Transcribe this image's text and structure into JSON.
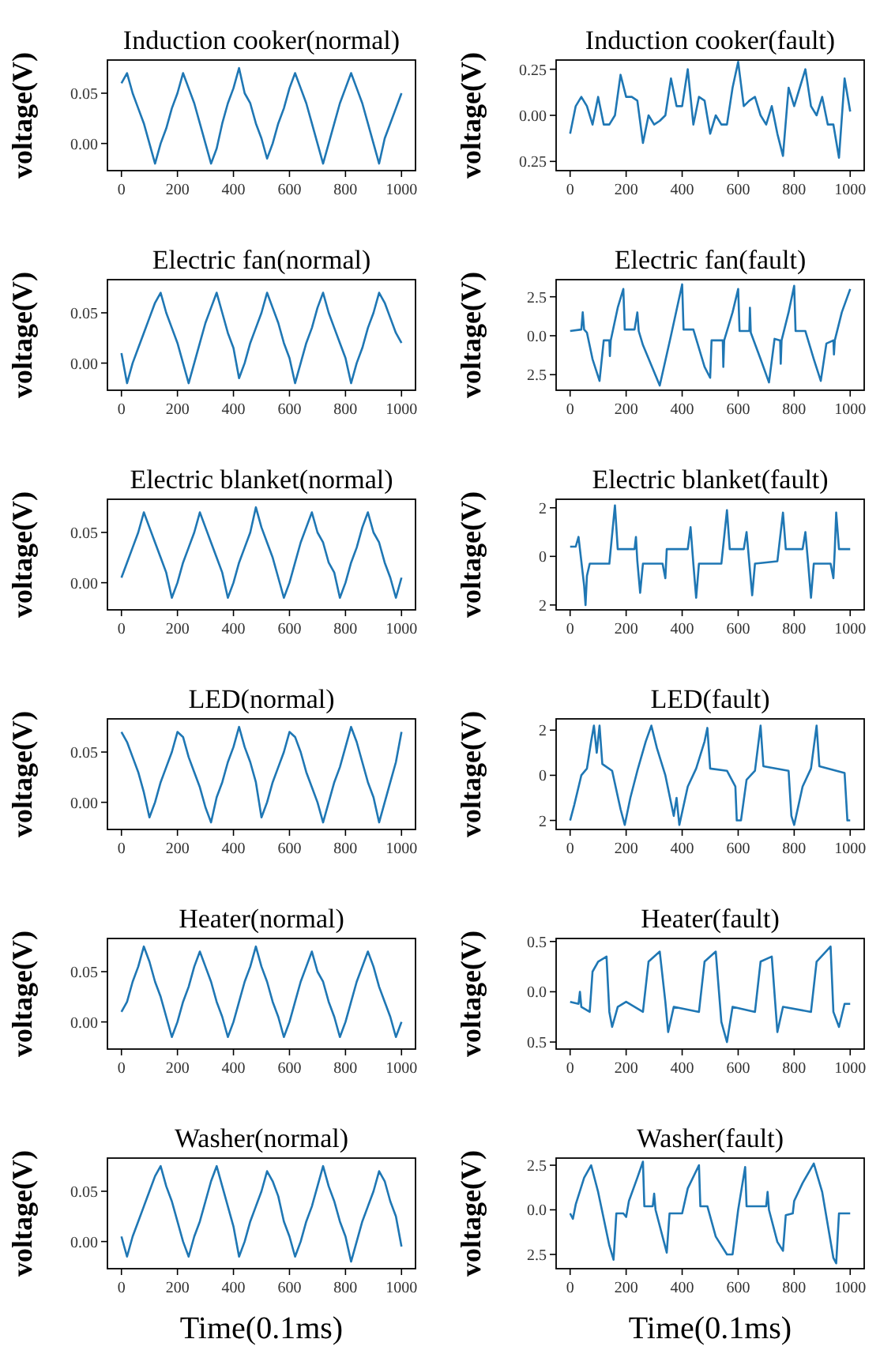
{
  "chart_data": [
    {
      "type": "line",
      "title": "Induction cooker(normal)",
      "ylabel": "voltage(V)",
      "color": "#1f77b4",
      "xlim": [
        -50,
        1050
      ],
      "ylim": [
        -0.027,
        0.083
      ],
      "xticks": [
        0,
        200,
        400,
        600,
        800,
        1000
      ],
      "yticks": [
        {
          "value": 0,
          "label": "0.00"
        },
        {
          "value": 0.05,
          "label": "0.05"
        }
      ],
      "x": [
        0,
        20,
        40,
        60,
        80,
        100,
        120,
        140,
        160,
        180,
        200,
        220,
        240,
        260,
        280,
        300,
        320,
        340,
        360,
        380,
        400,
        420,
        440,
        460,
        480,
        500,
        520,
        540,
        560,
        580,
        600,
        620,
        640,
        660,
        680,
        700,
        720,
        740,
        760,
        780,
        800,
        820,
        840,
        860,
        880,
        900,
        920,
        940,
        960,
        980,
        1000
      ],
      "values": [
        0.06,
        0.07,
        0.05,
        0.035,
        0.02,
        0.0,
        -0.02,
        0.0,
        0.015,
        0.035,
        0.05,
        0.07,
        0.055,
        0.04,
        0.02,
        0.0,
        -0.02,
        -0.005,
        0.02,
        0.04,
        0.055,
        0.075,
        0.05,
        0.04,
        0.02,
        0.005,
        -0.015,
        0.0,
        0.02,
        0.035,
        0.055,
        0.07,
        0.055,
        0.04,
        0.02,
        0.0,
        -0.02,
        0.0,
        0.02,
        0.04,
        0.055,
        0.07,
        0.055,
        0.04,
        0.02,
        0.0,
        -0.02,
        0.005,
        0.02,
        0.035,
        0.05
      ]
    },
    {
      "type": "line",
      "title": "Induction cooker(fault)",
      "ylabel": "voltage(V)",
      "color": "#1f77b4",
      "xlim": [
        -50,
        1050
      ],
      "ylim": [
        -0.3,
        0.3
      ],
      "xticks": [
        0,
        200,
        400,
        600,
        800,
        1000
      ],
      "yticks": [
        {
          "value": -0.25,
          "label": "0.25"
        },
        {
          "value": 0,
          "label": "0.00"
        },
        {
          "value": 0.25,
          "label": "0.25"
        }
      ],
      "x": [
        0,
        20,
        40,
        60,
        80,
        100,
        120,
        140,
        160,
        180,
        200,
        220,
        240,
        260,
        280,
        300,
        320,
        340,
        360,
        380,
        400,
        420,
        440,
        460,
        480,
        500,
        520,
        540,
        560,
        580,
        600,
        620,
        640,
        660,
        680,
        700,
        720,
        740,
        760,
        780,
        800,
        820,
        840,
        860,
        880,
        900,
        920,
        940,
        960,
        980,
        1000
      ],
      "values": [
        -0.1,
        0.05,
        0.1,
        0.05,
        -0.05,
        0.1,
        -0.05,
        -0.05,
        0.0,
        0.22,
        0.1,
        0.1,
        0.08,
        -0.15,
        0.0,
        -0.05,
        -0.03,
        0.0,
        0.2,
        0.05,
        0.05,
        0.25,
        -0.05,
        0.1,
        0.08,
        -0.1,
        0.0,
        -0.05,
        -0.05,
        0.15,
        0.29,
        0.05,
        0.08,
        0.1,
        0.0,
        -0.05,
        0.05,
        -0.1,
        -0.22,
        0.15,
        0.05,
        0.15,
        0.25,
        0.05,
        0.0,
        0.1,
        -0.05,
        -0.05,
        -0.23,
        0.2,
        0.02
      ]
    },
    {
      "type": "line",
      "title": "Electric fan(normal)",
      "ylabel": "voltage(V)",
      "color": "#1f77b4",
      "xlim": [
        -50,
        1050
      ],
      "ylim": [
        -0.027,
        0.083
      ],
      "xticks": [
        0,
        200,
        400,
        600,
        800,
        1000
      ],
      "yticks": [
        {
          "value": 0,
          "label": "0.00"
        },
        {
          "value": 0.05,
          "label": "0.05"
        }
      ],
      "x": [
        0,
        20,
        40,
        60,
        80,
        100,
        120,
        140,
        160,
        180,
        200,
        220,
        240,
        260,
        280,
        300,
        320,
        340,
        360,
        380,
        400,
        420,
        440,
        460,
        480,
        500,
        520,
        540,
        560,
        580,
        600,
        620,
        640,
        660,
        680,
        700,
        720,
        740,
        760,
        780,
        800,
        820,
        840,
        860,
        880,
        900,
        920,
        940,
        960,
        980,
        1000
      ],
      "values": [
        0.01,
        -0.02,
        0.0,
        0.015,
        0.03,
        0.045,
        0.06,
        0.07,
        0.05,
        0.035,
        0.02,
        0.0,
        -0.02,
        0.0,
        0.02,
        0.04,
        0.055,
        0.07,
        0.05,
        0.03,
        0.015,
        -0.015,
        0.0,
        0.02,
        0.035,
        0.05,
        0.07,
        0.055,
        0.04,
        0.02,
        0.005,
        -0.02,
        0.0,
        0.02,
        0.035,
        0.055,
        0.07,
        0.05,
        0.035,
        0.02,
        0.005,
        -0.02,
        0.0,
        0.015,
        0.035,
        0.05,
        0.07,
        0.06,
        0.045,
        0.03,
        0.02
      ]
    },
    {
      "type": "line",
      "title": "Electric fan(fault)",
      "ylabel": "voltage(V)",
      "color": "#1f77b4",
      "xlim": [
        -50,
        1050
      ],
      "ylim": [
        -3.5,
        3.6
      ],
      "xticks": [
        0,
        200,
        400,
        600,
        800,
        1000
      ],
      "yticks": [
        {
          "value": -2.5,
          "label": "2.5"
        },
        {
          "value": 0,
          "label": "0.0"
        },
        {
          "value": 2.5,
          "label": "2.5"
        }
      ],
      "x": [
        0,
        40,
        45,
        50,
        60,
        80,
        105,
        120,
        140,
        142,
        145,
        170,
        190,
        195,
        230,
        240,
        245,
        260,
        320,
        360,
        400,
        405,
        440,
        480,
        500,
        505,
        545,
        547,
        550,
        580,
        600,
        605,
        640,
        642,
        645,
        680,
        710,
        730,
        750,
        752,
        755,
        780,
        800,
        805,
        840,
        870,
        895,
        915,
        940,
        942,
        945,
        970,
        1000
      ],
      "values": [
        0.3,
        0.4,
        1.5,
        0.4,
        0.2,
        -1.5,
        -2.9,
        -0.3,
        -0.3,
        -1.3,
        -0.3,
        1.8,
        3.0,
        0.4,
        0.4,
        1.5,
        0.3,
        -0.6,
        -3.2,
        0.0,
        3.3,
        0.4,
        0.4,
        -2.0,
        -2.7,
        -0.3,
        -0.3,
        -2.0,
        -0.3,
        1.5,
        3.0,
        0.3,
        0.3,
        1.8,
        0.2,
        -1.5,
        -3.0,
        -0.2,
        -0.3,
        -1.8,
        -0.3,
        1.5,
        3.2,
        0.3,
        0.3,
        -1.5,
        -2.9,
        -0.5,
        -0.3,
        -1.2,
        -0.3,
        1.5,
        3.0
      ]
    },
    {
      "type": "line",
      "title": "Electric blanket(normal)",
      "ylabel": "voltage(V)",
      "color": "#1f77b4",
      "xlim": [
        -50,
        1050
      ],
      "ylim": [
        -0.027,
        0.083
      ],
      "xticks": [
        0,
        200,
        400,
        600,
        800,
        1000
      ],
      "yticks": [
        {
          "value": 0,
          "label": "0.00"
        },
        {
          "value": 0.05,
          "label": "0.05"
        }
      ],
      "x": [
        0,
        20,
        40,
        60,
        80,
        100,
        120,
        140,
        160,
        180,
        200,
        220,
        240,
        260,
        280,
        300,
        320,
        340,
        360,
        380,
        400,
        420,
        440,
        460,
        480,
        500,
        520,
        540,
        560,
        580,
        600,
        620,
        640,
        660,
        680,
        700,
        720,
        740,
        760,
        780,
        800,
        820,
        840,
        860,
        880,
        900,
        920,
        940,
        960,
        980,
        1000
      ],
      "values": [
        0.005,
        0.02,
        0.035,
        0.05,
        0.07,
        0.055,
        0.04,
        0.025,
        0.01,
        -0.015,
        0.0,
        0.02,
        0.035,
        0.05,
        0.07,
        0.055,
        0.04,
        0.025,
        0.01,
        -0.015,
        0.0,
        0.02,
        0.035,
        0.05,
        0.075,
        0.055,
        0.04,
        0.025,
        0.005,
        -0.015,
        0.0,
        0.02,
        0.04,
        0.055,
        0.07,
        0.05,
        0.04,
        0.02,
        0.01,
        -0.015,
        0.0,
        0.02,
        0.035,
        0.055,
        0.07,
        0.05,
        0.04,
        0.02,
        0.005,
        -0.015,
        0.005
      ]
    },
    {
      "type": "line",
      "title": "Electric blanket(fault)",
      "ylabel": "voltage(V)",
      "color": "#1f77b4",
      "xlim": [
        -50,
        1050
      ],
      "ylim": [
        -2.2,
        2.35
      ],
      "xticks": [
        0,
        200,
        400,
        600,
        800,
        1000
      ],
      "yticks": [
        {
          "value": -2,
          "label": "2"
        },
        0,
        2
      ],
      "x": [
        0,
        20,
        30,
        35,
        50,
        55,
        60,
        70,
        140,
        160,
        170,
        230,
        235,
        240,
        250,
        260,
        330,
        340,
        345,
        420,
        430,
        440,
        450,
        460,
        540,
        560,
        570,
        620,
        630,
        640,
        650,
        660,
        740,
        760,
        770,
        830,
        840,
        850,
        860,
        870,
        930,
        940,
        945,
        950,
        960,
        1000
      ],
      "values": [
        0.4,
        0.4,
        0.8,
        0.3,
        -1.2,
        -2.0,
        -0.8,
        -0.3,
        -0.3,
        2.1,
        0.3,
        0.3,
        0.8,
        -0.2,
        -1.5,
        -0.3,
        -0.3,
        -0.9,
        0.3,
        0.3,
        1.2,
        -0.3,
        -1.7,
        -0.3,
        -0.3,
        1.9,
        0.3,
        0.3,
        1.0,
        -0.3,
        -1.6,
        -0.3,
        -0.2,
        1.8,
        0.3,
        0.3,
        1.0,
        -0.3,
        -1.7,
        -0.3,
        -0.3,
        -0.9,
        0.3,
        1.8,
        0.3,
        0.3
      ]
    },
    {
      "type": "line",
      "title": "LED(normal)",
      "ylabel": "voltage(V)",
      "color": "#1f77b4",
      "xlim": [
        -50,
        1050
      ],
      "ylim": [
        -0.027,
        0.083
      ],
      "xticks": [
        0,
        200,
        400,
        600,
        800,
        1000
      ],
      "yticks": [
        {
          "value": 0,
          "label": "0.00"
        },
        {
          "value": 0.05,
          "label": "0.05"
        }
      ],
      "x": [
        0,
        20,
        40,
        60,
        80,
        100,
        120,
        140,
        160,
        180,
        200,
        220,
        240,
        260,
        280,
        300,
        320,
        340,
        360,
        380,
        400,
        420,
        440,
        460,
        480,
        500,
        520,
        540,
        560,
        580,
        600,
        620,
        640,
        660,
        680,
        700,
        720,
        740,
        760,
        780,
        800,
        820,
        840,
        860,
        880,
        900,
        920,
        940,
        960,
        980,
        1000
      ],
      "values": [
        0.07,
        0.06,
        0.045,
        0.03,
        0.01,
        -0.015,
        0.0,
        0.02,
        0.035,
        0.05,
        0.07,
        0.065,
        0.045,
        0.03,
        0.015,
        -0.005,
        -0.02,
        0.005,
        0.02,
        0.04,
        0.055,
        0.075,
        0.055,
        0.04,
        0.02,
        -0.015,
        0.0,
        0.02,
        0.035,
        0.05,
        0.07,
        0.065,
        0.05,
        0.03,
        0.015,
        0.0,
        -0.02,
        0.0,
        0.02,
        0.035,
        0.055,
        0.075,
        0.06,
        0.04,
        0.02,
        0.005,
        -0.02,
        0.0,
        0.02,
        0.04,
        0.07
      ]
    },
    {
      "type": "line",
      "title": "LED(fault)",
      "ylabel": "voltage(V)",
      "color": "#1f77b4",
      "xlim": [
        -50,
        1050
      ],
      "ylim": [
        -2.4,
        2.5
      ],
      "xticks": [
        0,
        200,
        400,
        600,
        800,
        1000
      ],
      "yticks": [
        {
          "value": -2,
          "label": "2"
        },
        0,
        2
      ],
      "x": [
        0,
        15,
        40,
        60,
        75,
        85,
        95,
        105,
        115,
        150,
        180,
        195,
        215,
        240,
        270,
        290,
        310,
        340,
        370,
        380,
        390,
        420,
        450,
        480,
        490,
        500,
        560,
        590,
        595,
        610,
        630,
        660,
        680,
        690,
        780,
        790,
        800,
        830,
        860,
        880,
        890,
        980,
        990,
        1000
      ],
      "values": [
        -2.0,
        -1.3,
        0.0,
        0.3,
        1.5,
        2.2,
        1.0,
        2.2,
        0.5,
        0.2,
        -1.5,
        -2.2,
        -1.0,
        0.2,
        1.5,
        2.2,
        1.2,
        0.0,
        -1.8,
        -1.0,
        -2.2,
        -0.5,
        0.3,
        1.5,
        2.1,
        0.3,
        0.2,
        -0.5,
        -2.0,
        -2.0,
        -0.2,
        0.2,
        2.2,
        0.4,
        0.2,
        -1.8,
        -2.2,
        -0.5,
        0.3,
        2.2,
        0.4,
        0.1,
        -2.0,
        -2.0
      ]
    },
    {
      "type": "line",
      "title": "Heater(normal)",
      "ylabel": "voltage(V)",
      "color": "#1f77b4",
      "xlim": [
        -50,
        1050
      ],
      "ylim": [
        -0.027,
        0.083
      ],
      "xticks": [
        0,
        200,
        400,
        600,
        800,
        1000
      ],
      "yticks": [
        {
          "value": 0,
          "label": "0.00"
        },
        {
          "value": 0.05,
          "label": "0.05"
        }
      ],
      "x": [
        0,
        20,
        40,
        60,
        80,
        100,
        120,
        140,
        160,
        180,
        200,
        220,
        240,
        260,
        280,
        300,
        320,
        340,
        360,
        380,
        400,
        420,
        440,
        460,
        480,
        500,
        520,
        540,
        560,
        580,
        600,
        620,
        640,
        660,
        680,
        700,
        720,
        740,
        760,
        780,
        800,
        820,
        840,
        860,
        880,
        900,
        920,
        940,
        960,
        980,
        1000
      ],
      "values": [
        0.01,
        0.02,
        0.04,
        0.055,
        0.075,
        0.06,
        0.04,
        0.025,
        0.005,
        -0.015,
        0.0,
        0.02,
        0.035,
        0.055,
        0.07,
        0.055,
        0.04,
        0.02,
        0.005,
        -0.015,
        0.0,
        0.02,
        0.04,
        0.055,
        0.075,
        0.055,
        0.04,
        0.02,
        0.005,
        -0.015,
        0.0,
        0.02,
        0.04,
        0.055,
        0.07,
        0.05,
        0.04,
        0.02,
        0.005,
        -0.015,
        0.0,
        0.02,
        0.04,
        0.055,
        0.07,
        0.055,
        0.035,
        0.02,
        0.005,
        -0.015,
        0.0
      ]
    },
    {
      "type": "line",
      "title": "Heater(fault)",
      "ylabel": "voltage(V)",
      "color": "#1f77b4",
      "xlim": [
        -50,
        1050
      ],
      "ylim": [
        -0.57,
        0.53
      ],
      "xticks": [
        0,
        200,
        400,
        600,
        800,
        1000
      ],
      "yticks": [
        {
          "value": -0.5,
          "label": "0.5"
        },
        {
          "value": 0,
          "label": "0.0"
        },
        0.5
      ],
      "x": [
        0,
        30,
        35,
        40,
        70,
        80,
        100,
        130,
        140,
        150,
        170,
        200,
        260,
        280,
        320,
        340,
        350,
        370,
        460,
        480,
        520,
        540,
        560,
        580,
        660,
        680,
        720,
        740,
        760,
        860,
        880,
        930,
        940,
        960,
        980,
        1000
      ],
      "values": [
        -0.1,
        -0.12,
        0.0,
        -0.15,
        -0.2,
        0.2,
        0.3,
        0.35,
        -0.2,
        -0.35,
        -0.15,
        -0.1,
        -0.2,
        0.3,
        0.4,
        -0.1,
        -0.4,
        -0.15,
        -0.2,
        0.3,
        0.4,
        -0.3,
        -0.5,
        -0.15,
        -0.2,
        0.3,
        0.35,
        -0.4,
        -0.15,
        -0.2,
        0.3,
        0.45,
        -0.2,
        -0.35,
        -0.12,
        -0.12
      ]
    },
    {
      "type": "line",
      "title": "Washer(normal)",
      "xlabel": "Time(0.1ms)",
      "ylabel": "voltage(V)",
      "color": "#1f77b4",
      "xlim": [
        -50,
        1050
      ],
      "ylim": [
        -0.027,
        0.083
      ],
      "xticks": [
        0,
        200,
        400,
        600,
        800,
        1000
      ],
      "yticks": [
        {
          "value": 0,
          "label": "0.00"
        },
        {
          "value": 0.05,
          "label": "0.05"
        }
      ],
      "x": [
        0,
        20,
        40,
        60,
        80,
        100,
        120,
        140,
        160,
        180,
        200,
        220,
        240,
        260,
        280,
        300,
        320,
        340,
        360,
        380,
        400,
        420,
        440,
        460,
        480,
        500,
        520,
        540,
        560,
        580,
        600,
        620,
        640,
        660,
        680,
        700,
        720,
        740,
        760,
        780,
        800,
        820,
        840,
        860,
        880,
        900,
        920,
        940,
        960,
        980,
        1000
      ],
      "values": [
        0.005,
        -0.015,
        0.005,
        0.02,
        0.035,
        0.05,
        0.065,
        0.075,
        0.055,
        0.04,
        0.02,
        0.0,
        -0.015,
        0.005,
        0.02,
        0.04,
        0.06,
        0.075,
        0.055,
        0.035,
        0.015,
        -0.015,
        0.0,
        0.02,
        0.035,
        0.05,
        0.07,
        0.06,
        0.045,
        0.02,
        0.005,
        -0.015,
        0.0,
        0.02,
        0.035,
        0.055,
        0.075,
        0.055,
        0.04,
        0.02,
        0.005,
        -0.02,
        0.0,
        0.02,
        0.035,
        0.05,
        0.07,
        0.06,
        0.04,
        0.025,
        -0.005
      ]
    },
    {
      "type": "line",
      "title": "Washer(fault)",
      "xlabel": "Time(0.1ms)",
      "ylabel": "voltage(V)",
      "color": "#1f77b4",
      "xlim": [
        -50,
        1050
      ],
      "ylim": [
        -3.3,
        2.9
      ],
      "xticks": [
        0,
        200,
        400,
        600,
        800,
        1000
      ],
      "yticks": [
        {
          "value": -2.5,
          "label": "2.5"
        },
        {
          "value": 0,
          "label": "0.0"
        },
        2.5
      ],
      "x": [
        0,
        10,
        20,
        50,
        75,
        100,
        140,
        155,
        165,
        190,
        200,
        210,
        240,
        260,
        265,
        295,
        300,
        305,
        330,
        345,
        355,
        400,
        420,
        460,
        465,
        490,
        520,
        560,
        580,
        600,
        625,
        630,
        700,
        705,
        710,
        740,
        760,
        770,
        795,
        800,
        830,
        870,
        900,
        940,
        950,
        960,
        1000
      ],
      "values": [
        -0.2,
        -0.5,
        0.3,
        1.8,
        2.5,
        1.0,
        -2.0,
        -2.8,
        -0.2,
        -0.2,
        -0.4,
        0.5,
        1.8,
        2.7,
        0.2,
        0.2,
        0.9,
        0.0,
        -1.5,
        -2.4,
        -0.2,
        -0.2,
        1.2,
        2.5,
        0.2,
        0.2,
        -1.5,
        -2.5,
        -2.5,
        0.0,
        2.4,
        0.2,
        0.2,
        1.0,
        0.0,
        -1.8,
        -2.3,
        -0.3,
        -0.2,
        0.5,
        1.5,
        2.6,
        1.0,
        -2.7,
        -3.0,
        -0.2,
        -0.2
      ]
    }
  ]
}
